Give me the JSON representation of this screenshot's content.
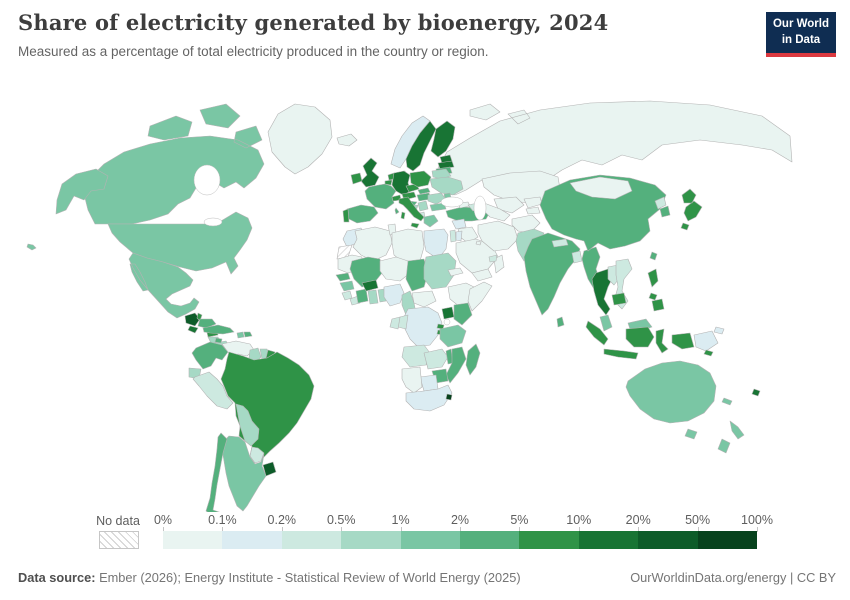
{
  "header": {
    "title": "Share of electricity generated by bioenergy, 2024",
    "subtitle": "Measured as a percentage of total electricity produced in the country or region.",
    "logo_line1": "Our World",
    "logo_line2": "in Data"
  },
  "legend": {
    "no_data_label": "No data",
    "tick_labels": [
      "0%",
      "0.1%",
      "0.2%",
      "0.5%",
      "1%",
      "2%",
      "5%",
      "10%",
      "20%",
      "50%",
      "100%"
    ],
    "bin_colors": [
      "#e9f4f1",
      "#dbecf2",
      "#cde9e0",
      "#a6d9c5",
      "#7ac6a4",
      "#54b07d",
      "#2f9347",
      "#187434",
      "#0d5c29",
      "#07421d"
    ],
    "no_data_hatch_color": "#cfcfcf"
  },
  "footer": {
    "source_label": "Data source:",
    "source_text": "Ember (2026); Energy Institute - Statistical Review of World Energy (2025)",
    "right_text": "OurWorldinData.org/energy | CC BY"
  },
  "chart_data": {
    "type": "choropleth",
    "title": "Share of electricity generated by bioenergy, 2024",
    "unit": "% of total electricity produced",
    "legend_position": "bottom",
    "bins": [
      "0-0.1%",
      "0.1-0.2%",
      "0.2-0.5%",
      "0.5-1%",
      "1-2%",
      "2-5%",
      "5-10%",
      "10-20%",
      "20-50%",
      "50-100%"
    ],
    "countries": {
      "Canada": "1-2%",
      "United States": "1-2%",
      "Mexico": "1-2%",
      "Greenland": "0-0.1%",
      "Guatemala": "20-50%",
      "Belize": "5-10%",
      "Honduras": "2-5%",
      "El Salvador": "10-20%",
      "Nicaragua": "5-10%",
      "Costa Rica": "0.5-1%",
      "Panama": "0.5-1%",
      "Cuba": "2-5%",
      "Jamaica": "2-5%",
      "Haiti": "1-2%",
      "Dominican Republic": "2-5%",
      "Colombia": "2-5%",
      "Venezuela": "0-0.1%",
      "Guyana": "0.5-1%",
      "Suriname": "0.5-1%",
      "French Guiana": "5-10%",
      "Ecuador": "0.5-1%",
      "Peru": "0.2-0.5%",
      "Brazil": "5-10%",
      "Bolivia": "0.5-1%",
      "Paraguay": "0.2-0.5%",
      "Chile": "2-5%",
      "Argentina": "1-2%",
      "Uruguay": "20-50%",
      "Iceland": "0-0.1%",
      "Norway": "0.1-0.2%",
      "Sweden": "10-20%",
      "Finland": "10-20%",
      "Denmark": "20-50%",
      "United Kingdom": "10-20%",
      "Ireland": "5-10%",
      "Portugal": "5-10%",
      "Spain": "2-5%",
      "France": "2-5%",
      "Belgium": "5-10%",
      "Netherlands": "5-10%",
      "Germany": "10-20%",
      "Switzerland": "5-10%",
      "Austria": "5-10%",
      "Italy": "5-10%",
      "Czechia": "5-10%",
      "Poland": "5-10%",
      "Slovakia": "2-5%",
      "Hungary": "2-5%",
      "Estonia": "10-20%",
      "Latvia": "10-20%",
      "Lithuania": "2-5%",
      "Belarus": "0.5-1%",
      "Ukraine": "0.5-1%",
      "Moldova": "1-2%",
      "Romania": "0.5-1%",
      "Serbia": "0.5-1%",
      "Bosnia": "0.5-1%",
      "Croatia": "2-5%",
      "Albania": "0.2-0.5%",
      "Greece": "1-2%",
      "Bulgaria": "1-2%",
      "Russia": "0-0.1%",
      "Turkey": "2-5%",
      "Georgia": "0-0.1%",
      "Azerbaijan": "0.2-0.5%",
      "Morocco": "0.1-0.2%",
      "Western Sahara": "no-data",
      "Algeria": "0-0.1%",
      "Tunisia": "0-0.1%",
      "Libya": "0-0.1%",
      "Egypt": "0.1-0.2%",
      "Mauritania": "0-0.1%",
      "Mali": "2-5%",
      "Niger": "0-0.1%",
      "Chad": "2-5%",
      "Sudan": "0.5-1%",
      "Senegal": "2-5%",
      "Guinea": "1-2%",
      "Sierra Leone": "0.2-0.5%",
      "Liberia": "0.2-0.5%",
      "Ivory Coast": "2-5%",
      "Ghana": "0.5-1%",
      "Benin": "0.5-1%",
      "Burkina Faso": "10-20%",
      "Nigeria": "0.1-0.2%",
      "Cameroon": "0.5-1%",
      "Central African Republic": "0-0.1%",
      "Eritrea": "0-0.1%",
      "Ethiopia": "0-0.1%",
      "Somalia": "0-0.1%",
      "Uganda": "10-20%",
      "Kenya": "2-5%",
      "Rwanda": "5-10%",
      "Burundi": "5-10%",
      "Democratic Republic of Congo": "0.1-0.2%",
      "Congo": "0.2-0.5%",
      "Gabon": "0.2-0.5%",
      "Tanzania": "1-2%",
      "Angola": "0.2-0.5%",
      "Zambia": "0.2-0.5%",
      "Malawi": "2-5%",
      "Mozambique": "2-5%",
      "Zimbabwe": "2-5%",
      "Botswana": "0.1-0.2%",
      "Namibia": "0-0.1%",
      "South Africa": "0.1-0.2%",
      "Eswatini": "50-100%",
      "Madagascar": "2-5%",
      "Syria": "0.1-0.2%",
      "Iraq": "0-0.1%",
      "Israel": "0.2-0.5%",
      "Jordan": "0.1-0.2%",
      "Saudi Arabia": "0-0.1%",
      "Yemen": "0-0.1%",
      "Oman": "0-0.1%",
      "Kuwait": "0-0.1%",
      "United Arab Emirates": "0.2-0.5%",
      "Iran": "0-0.1%",
      "Kazakhstan": "0-0.1%",
      "Uzbekistan": "0-0.1%",
      "Turkmenistan": "0-0.1%",
      "Kyrgyzstan": "0-0.1%",
      "Tajikistan": "0-0.1%",
      "Afghanistan": "0-0.1%",
      "Pakistan": "0.5-1%",
      "India": "2-5%",
      "Nepal": "0.2-0.5%",
      "Bangladesh": "0.2-0.5%",
      "Sri Lanka": "2-5%",
      "Myanmar": "2-5%",
      "China": "2-5%",
      "Mongolia": "0-0.1%",
      "North Korea": "0.2-0.5%",
      "South Korea": "2-5%",
      "Japan": "5-10%",
      "Taiwan": "2-5%",
      "Thailand": "10-20%",
      "Laos": "0.2-0.5%",
      "Vietnam": "0.2-0.5%",
      "Cambodia": "5-10%",
      "Malaysia": "1-2%",
      "Indonesia": "5-10%",
      "Philippines": "5-10%",
      "Papua New Guinea": "0.1-0.2%",
      "Solomon Islands": "5-10%",
      "Australia": "1-2%",
      "New Zealand": "1-2%",
      "Fiji": "10-20%",
      "New Caledonia": "1-2%"
    },
    "no_data_regions": [
      "Western Sahara"
    ]
  }
}
